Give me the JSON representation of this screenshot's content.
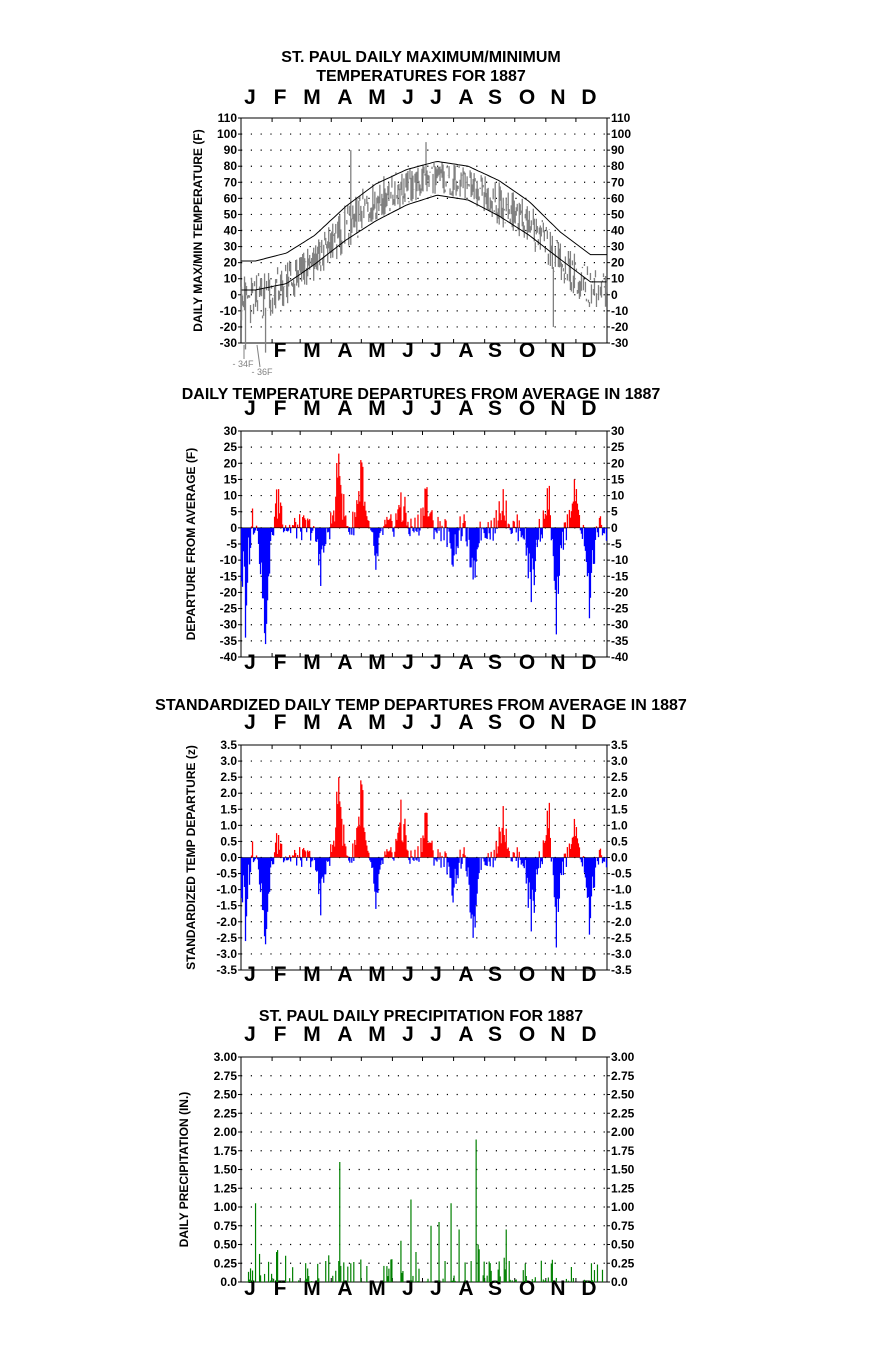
{
  "colors": {
    "temp_range": "#808080",
    "normal_lines": "#000000",
    "positive": "#ff0000",
    "negative": "#0000ff",
    "precip": "#008000",
    "grid": "#000000"
  },
  "chart_data": [
    {
      "type": "line",
      "title": [
        "ST. PAUL DAILY MAXIMUM/MINIMUM",
        "TEMPERATURES FOR 1887"
      ],
      "ylabel": "DAILY MAX/MIN TEMPERATURE (F)",
      "months_top": [
        "J",
        "F",
        "M",
        "A",
        "M",
        "J",
        "J",
        "A",
        "S",
        "O",
        "N",
        "D"
      ],
      "months_bottom": [
        "F",
        "M",
        "A",
        "M",
        "J",
        "J",
        "A",
        "S",
        "O",
        "N",
        "D"
      ],
      "ylim": [
        -30,
        110
      ],
      "yticks": [
        "110",
        "100",
        "90",
        "80",
        "70",
        "60",
        "50",
        "40",
        "30",
        "20",
        "10",
        "0",
        "-10",
        "-20",
        "-30"
      ],
      "grid": true,
      "annotations": [
        "- 34F",
        "- 36F"
      ],
      "series": [
        {
          "name": "",
          "style": "daily max/min range",
          "months": [
            1,
            2,
            3,
            4,
            5,
            6,
            7,
            8,
            9,
            10,
            11,
            12
          ],
          "high": [
            15,
            22,
            33,
            58,
            75,
            80,
            85,
            80,
            72,
            58,
            35,
            18
          ],
          "low": [
            -20,
            -10,
            8,
            25,
            45,
            52,
            62,
            56,
            42,
            30,
            5,
            -10
          ],
          "extremes": [
            [
              5,
              -34
            ],
            [
              25,
              -36
            ],
            [
              110,
              90
            ],
            [
              185,
              95
            ],
            [
              312,
              -20
            ]
          ]
        },
        {
          "name": "",
          "style": "normal max",
          "months": [
            1,
            2,
            3,
            4,
            5,
            6,
            7,
            8,
            9,
            10,
            11,
            12
          ],
          "values": [
            21,
            26,
            37,
            55,
            69,
            78,
            83,
            80,
            71,
            58,
            39,
            25
          ]
        },
        {
          "name": "",
          "style": "normal min",
          "months": [
            1,
            2,
            3,
            4,
            5,
            6,
            7,
            8,
            9,
            10,
            11,
            12
          ],
          "values": [
            3,
            7,
            19,
            34,
            46,
            56,
            62,
            59,
            49,
            37,
            22,
            8
          ]
        }
      ]
    },
    {
      "type": "bar",
      "title": "DAILY TEMPERATURE DEPARTURES FROM AVERAGE IN 1887",
      "ylabel": "DEPARTURE FROM AVERAGE (F)",
      "months_top": [
        "J",
        "F",
        "M",
        "A",
        "M",
        "J",
        "J",
        "A",
        "S",
        "O",
        "N",
        "D"
      ],
      "months_bottom": [
        "J",
        "F",
        "M",
        "A",
        "M",
        "J",
        "J",
        "A",
        "S",
        "O",
        "N",
        "D"
      ],
      "ylim": [
        -40,
        30
      ],
      "yticks": [
        "30",
        "25",
        "20",
        "15",
        "10",
        "5",
        "0",
        "-5",
        "-10",
        "-15",
        "-20",
        "-25",
        "-30",
        "-35",
        "-40"
      ],
      "grid": true,
      "peaks": [
        [
          5,
          -34
        ],
        [
          12,
          6
        ],
        [
          25,
          -36
        ],
        [
          38,
          12
        ],
        [
          80,
          -18
        ],
        [
          98,
          23
        ],
        [
          120,
          21
        ],
        [
          135,
          -13
        ],
        [
          160,
          11
        ],
        [
          185,
          12
        ],
        [
          212,
          -12
        ],
        [
          232,
          -16
        ],
        [
          262,
          12
        ],
        [
          290,
          -23
        ],
        [
          308,
          13
        ],
        [
          315,
          -33
        ],
        [
          333,
          15
        ],
        [
          348,
          -28
        ]
      ]
    },
    {
      "type": "bar",
      "title": "STANDARDIZED DAILY TEMP DEPARTURES FROM AVERAGE IN 1887",
      "ylabel": "STANDARDIZED TEMP DEPARTURE (z)",
      "months_top": [
        "J",
        "F",
        "M",
        "A",
        "M",
        "J",
        "J",
        "A",
        "S",
        "O",
        "N",
        "D"
      ],
      "months_bottom": [
        "J",
        "F",
        "M",
        "A",
        "M",
        "J",
        "J",
        "A",
        "S",
        "O",
        "N",
        "D"
      ],
      "ylim": [
        -3.5,
        3.5
      ],
      "yticks": [
        "3.5",
        "3.0",
        "2.5",
        "2.0",
        "1.5",
        "1.0",
        "0.5",
        "0.0",
        "-0.5",
        "-1.0",
        "-1.5",
        "-2.0",
        "-2.5",
        "-3.0",
        "-3.5"
      ],
      "grid": true,
      "peaks": [
        [
          5,
          -2.6
        ],
        [
          12,
          0.5
        ],
        [
          25,
          -2.7
        ],
        [
          38,
          0.7
        ],
        [
          80,
          -1.8
        ],
        [
          98,
          2.5
        ],
        [
          120,
          2.4
        ],
        [
          135,
          -1.6
        ],
        [
          160,
          1.8
        ],
        [
          185,
          1.4
        ],
        [
          212,
          -1.4
        ],
        [
          232,
          -2.5
        ],
        [
          262,
          1.6
        ],
        [
          290,
          -2.3
        ],
        [
          308,
          1.7
        ],
        [
          315,
          -2.8
        ],
        [
          333,
          1.2
        ],
        [
          348,
          -2.4
        ]
      ]
    },
    {
      "type": "bar",
      "title": "ST. PAUL DAILY PRECIPITATION FOR 1887",
      "ylabel": "DAILY PRECIPITATION (IN.)",
      "months_top": [
        "J",
        "F",
        "M",
        "A",
        "M",
        "J",
        "J",
        "A",
        "S",
        "O",
        "N",
        "D"
      ],
      "months_bottom": [
        "J",
        "F",
        "M",
        "A",
        "M",
        "J",
        "J",
        "A",
        "S",
        "O",
        "N",
        "D"
      ],
      "ylim": [
        0,
        3.0
      ],
      "yticks": [
        "3.00",
        "2.75",
        "2.50",
        "2.25",
        "2.00",
        "1.75",
        "1.50",
        "1.25",
        "1.00",
        "0.75",
        "0.50",
        "0.25",
        "0.0"
      ],
      "grid": true,
      "peaks": [
        [
          15,
          1.05
        ],
        [
          45,
          0.35
        ],
        [
          95,
          0.15
        ],
        [
          99,
          1.6
        ],
        [
          110,
          0.25
        ],
        [
          120,
          0.3
        ],
        [
          150,
          0.3
        ],
        [
          160,
          0.55
        ],
        [
          170,
          1.1
        ],
        [
          175,
          0.4
        ],
        [
          190,
          0.75
        ],
        [
          198,
          0.8
        ],
        [
          210,
          1.05
        ],
        [
          218,
          0.7
        ],
        [
          235,
          1.9
        ],
        [
          237,
          0.5
        ],
        [
          265,
          0.7
        ],
        [
          330,
          0.2
        ],
        [
          350,
          0.25
        ]
      ]
    }
  ]
}
